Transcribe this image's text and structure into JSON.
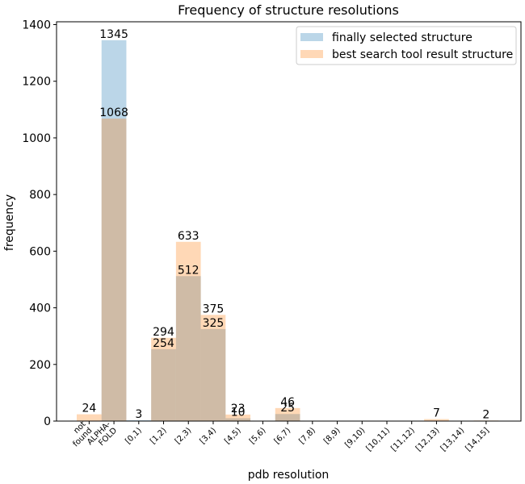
{
  "chart_data": {
    "type": "bar",
    "title": "Frequency of structure resolutions",
    "xlabel": "pdb resolution",
    "ylabel": "frequency",
    "ylim": [
      0,
      1410
    ],
    "yticks": [
      0,
      200,
      400,
      600,
      800,
      1000,
      1200,
      1400
    ],
    "categories": [
      "not\nfound",
      "ALPHA-\nFOLD",
      "[0,1)",
      "[1,2)",
      "[2,3)",
      "[3,4)",
      "[4,5)",
      "[5,6)",
      "[6,7)",
      "[7,8)",
      "[8,9)",
      "[9,10)",
      "[10,11)",
      "[11,12)",
      "[12,13)",
      "[13,14)",
      "[14,15]"
    ],
    "series": [
      {
        "name": "finally selected structure",
        "color": "#1f77b4",
        "opacity": 0.3,
        "values": [
          0,
          1345,
          3,
          254,
          512,
          325,
          10,
          0,
          25,
          0,
          0,
          0,
          0,
          0,
          0,
          0,
          0
        ],
        "labels": [
          null,
          "1345",
          "3",
          "254",
          "512",
          "325",
          "10",
          null,
          "25",
          null,
          null,
          null,
          null,
          null,
          null,
          null,
          null
        ]
      },
      {
        "name": "best search tool result structure",
        "color": "#ff7f0e",
        "opacity": 0.3,
        "values": [
          24,
          1068,
          0,
          294,
          633,
          375,
          23,
          0,
          46,
          0,
          0,
          0,
          0,
          0,
          7,
          0,
          2
        ],
        "labels": [
          "24",
          "1068",
          null,
          "294",
          "633",
          "375",
          "23",
          null,
          "46",
          null,
          null,
          null,
          null,
          null,
          "7",
          null,
          "2"
        ]
      }
    ],
    "legend": "top-right",
    "grid": false
  }
}
